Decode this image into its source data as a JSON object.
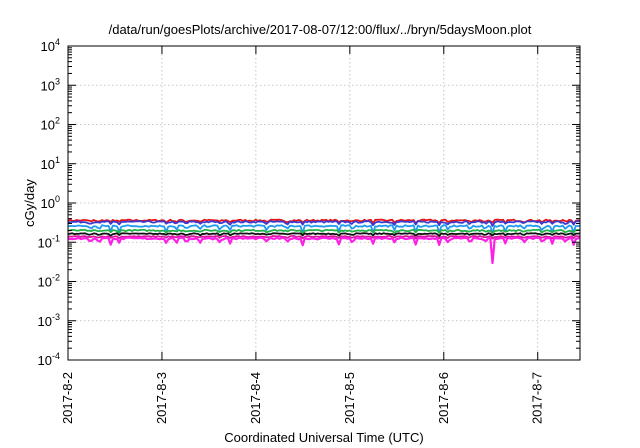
{
  "chart_data": {
    "type": "line",
    "title": "/data/run/goesPlots/archive/2017-08-07/12:00/flux/../bryn/5daysMoon.plot",
    "xlabel": "Coordinated Universal Time (UTC)",
    "ylabel": "cGy/day",
    "yscale": "log",
    "ylim": [
      0.0001,
      10000
    ],
    "xlim": [
      0,
      5.45
    ],
    "grid": true,
    "x_tick_labels": [
      "2017-8-2",
      "2017-8-3",
      "2017-8-4",
      "2017-8-5",
      "2017-8-6",
      "2017-8-7"
    ],
    "y_tick_labels": [
      {
        "base": "10",
        "exp": "-4"
      },
      {
        "base": "10",
        "exp": "-3"
      },
      {
        "base": "10",
        "exp": "-2"
      },
      {
        "base": "10",
        "exp": "-1"
      },
      {
        "base": "10",
        "exp": "0"
      },
      {
        "base": "10",
        "exp": "1"
      },
      {
        "base": "10",
        "exp": "2"
      },
      {
        "base": "10",
        "exp": "3"
      },
      {
        "base": "10",
        "exp": "4"
      }
    ],
    "series": [
      {
        "color": "#e8131a",
        "level": 0.36,
        "dip_depth": 0.15,
        "noise": 0.05
      },
      {
        "color": "#3a3acf",
        "level": 0.33,
        "dip_depth": 0.18,
        "noise": 0.05
      },
      {
        "color": "#1f9bf0",
        "level": 0.26,
        "dip_depth": 0.35,
        "noise": 0.05
      },
      {
        "color": "#22b24a",
        "level": 0.2,
        "dip_depth": 0.15,
        "noise": 0.04
      },
      {
        "color": "#111111",
        "level": 0.165,
        "dip_depth": 0.12,
        "noise": 0.03
      },
      {
        "color": "#d81b9c",
        "level": 0.14,
        "dip_depth": 0.1,
        "noise": 0.03
      },
      {
        "color": "#ff1fe6",
        "level": 0.125,
        "dip_depth": 0.35,
        "noise": 0.05
      }
    ],
    "dip_days": [
      0.24,
      0.33,
      0.45,
      0.55,
      1.05,
      1.15,
      1.26,
      1.4,
      1.62,
      1.72,
      2.12,
      2.33,
      2.5,
      2.88,
      3.03,
      3.25,
      3.48,
      3.7,
      3.95,
      4.05,
      4.28,
      4.44,
      4.52,
      4.65,
      4.85,
      5.05,
      5.15,
      5.3,
      5.38
    ]
  }
}
